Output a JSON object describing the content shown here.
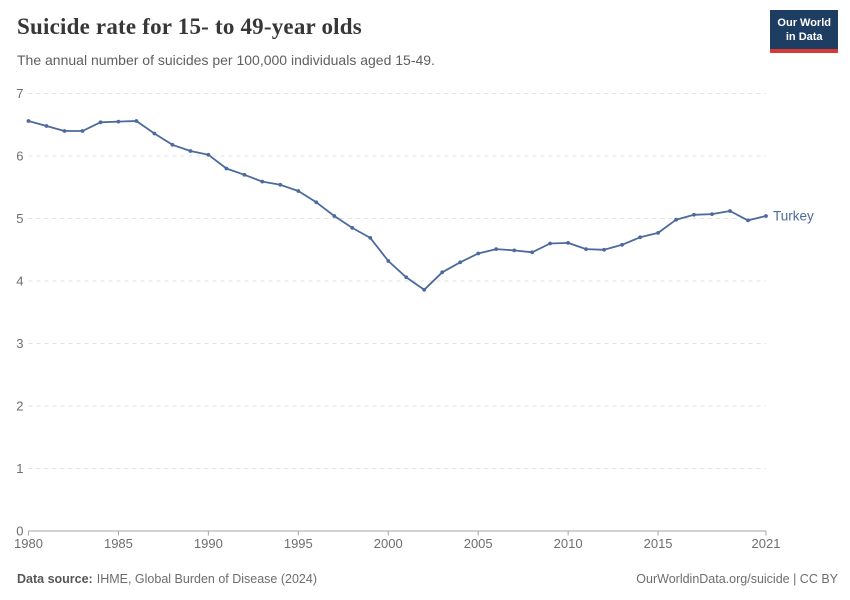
{
  "header": {
    "title": "Suicide rate for 15- to 49-year olds",
    "subtitle": "The annual number of suicides per 100,000 individuals aged 15-49.",
    "logo": {
      "line1": "Our World",
      "line2": "in Data"
    }
  },
  "chart_data": {
    "type": "line",
    "title": "Suicide rate for 15- to 49-year olds",
    "xlabel": "",
    "ylabel": "",
    "xlim": [
      1980,
      2021
    ],
    "ylim": [
      0,
      7
    ],
    "yticks": [
      0,
      1,
      2,
      3,
      4,
      5,
      6,
      7
    ],
    "xticks": [
      1980,
      1985,
      1990,
      1995,
      2000,
      2005,
      2010,
      2015,
      2021
    ],
    "grid": "horizontal-dashed",
    "legend_position": "end-of-line-label",
    "series": [
      {
        "name": "Turkey",
        "color": "#4c6a9c",
        "x": [
          1980,
          1981,
          1982,
          1983,
          1984,
          1985,
          1986,
          1987,
          1988,
          1989,
          1990,
          1991,
          1992,
          1993,
          1994,
          1995,
          1996,
          1997,
          1998,
          1999,
          2000,
          2001,
          2002,
          2003,
          2004,
          2005,
          2006,
          2007,
          2008,
          2009,
          2010,
          2011,
          2012,
          2013,
          2014,
          2015,
          2016,
          2017,
          2018,
          2019,
          2020,
          2021
        ],
        "values": [
          6.56,
          6.48,
          6.4,
          6.4,
          6.54,
          6.55,
          6.56,
          6.36,
          6.18,
          6.08,
          6.02,
          5.8,
          5.7,
          5.59,
          5.54,
          5.44,
          5.26,
          5.04,
          4.85,
          4.69,
          4.32,
          4.06,
          3.86,
          4.14,
          4.3,
          4.44,
          4.51,
          4.49,
          4.46,
          4.6,
          4.61,
          4.51,
          4.5,
          4.58,
          4.7,
          4.77,
          4.98,
          5.06,
          5.07,
          5.12,
          4.97,
          5.04
        ]
      }
    ]
  },
  "footer": {
    "datasource_label": "Data source:",
    "datasource": "IHME, Global Burden of Disease (2024)",
    "attribution": "OurWorldinData.org/suicide | CC BY"
  },
  "colors": {
    "series": "#4c6a9c",
    "grid": "#e2e2e2",
    "axis": "#a5a5a5",
    "tick_label": "#6e6e6e",
    "logo_bg": "#1d3d63",
    "logo_accent": "#d73a34"
  }
}
